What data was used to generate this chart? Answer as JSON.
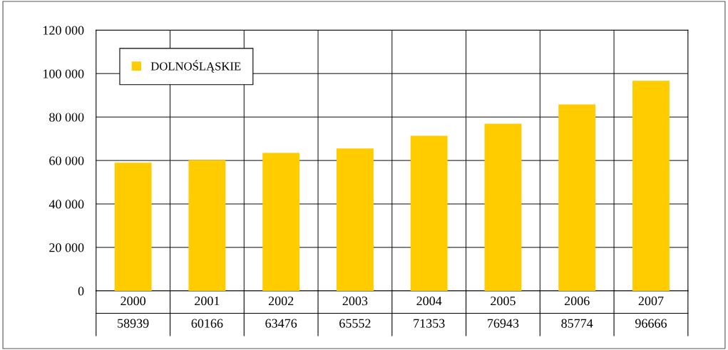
{
  "chart_data": {
    "type": "bar",
    "categories": [
      "2000",
      "2001",
      "2002",
      "2003",
      "2004",
      "2005",
      "2006",
      "2007"
    ],
    "series": [
      {
        "name": "DOLNOŚLĄSKIE",
        "color": "#ffcc00",
        "values": [
          58939,
          60166,
          63476,
          65552,
          71353,
          76943,
          85774,
          96666
        ]
      }
    ],
    "ylim": [
      0,
      120000
    ],
    "yticks": [
      {
        "value": 0,
        "label": "0"
      },
      {
        "value": 20000,
        "label": "20 000"
      },
      {
        "value": 40000,
        "label": "40 000"
      },
      {
        "value": 60000,
        "label": "60 000"
      },
      {
        "value": 80000,
        "label": "80 000"
      },
      {
        "value": 100000,
        "label": "100 000"
      },
      {
        "value": 120000,
        "label": "120 000"
      }
    ],
    "grid": true,
    "legend": "top left",
    "data_labels": true
  }
}
